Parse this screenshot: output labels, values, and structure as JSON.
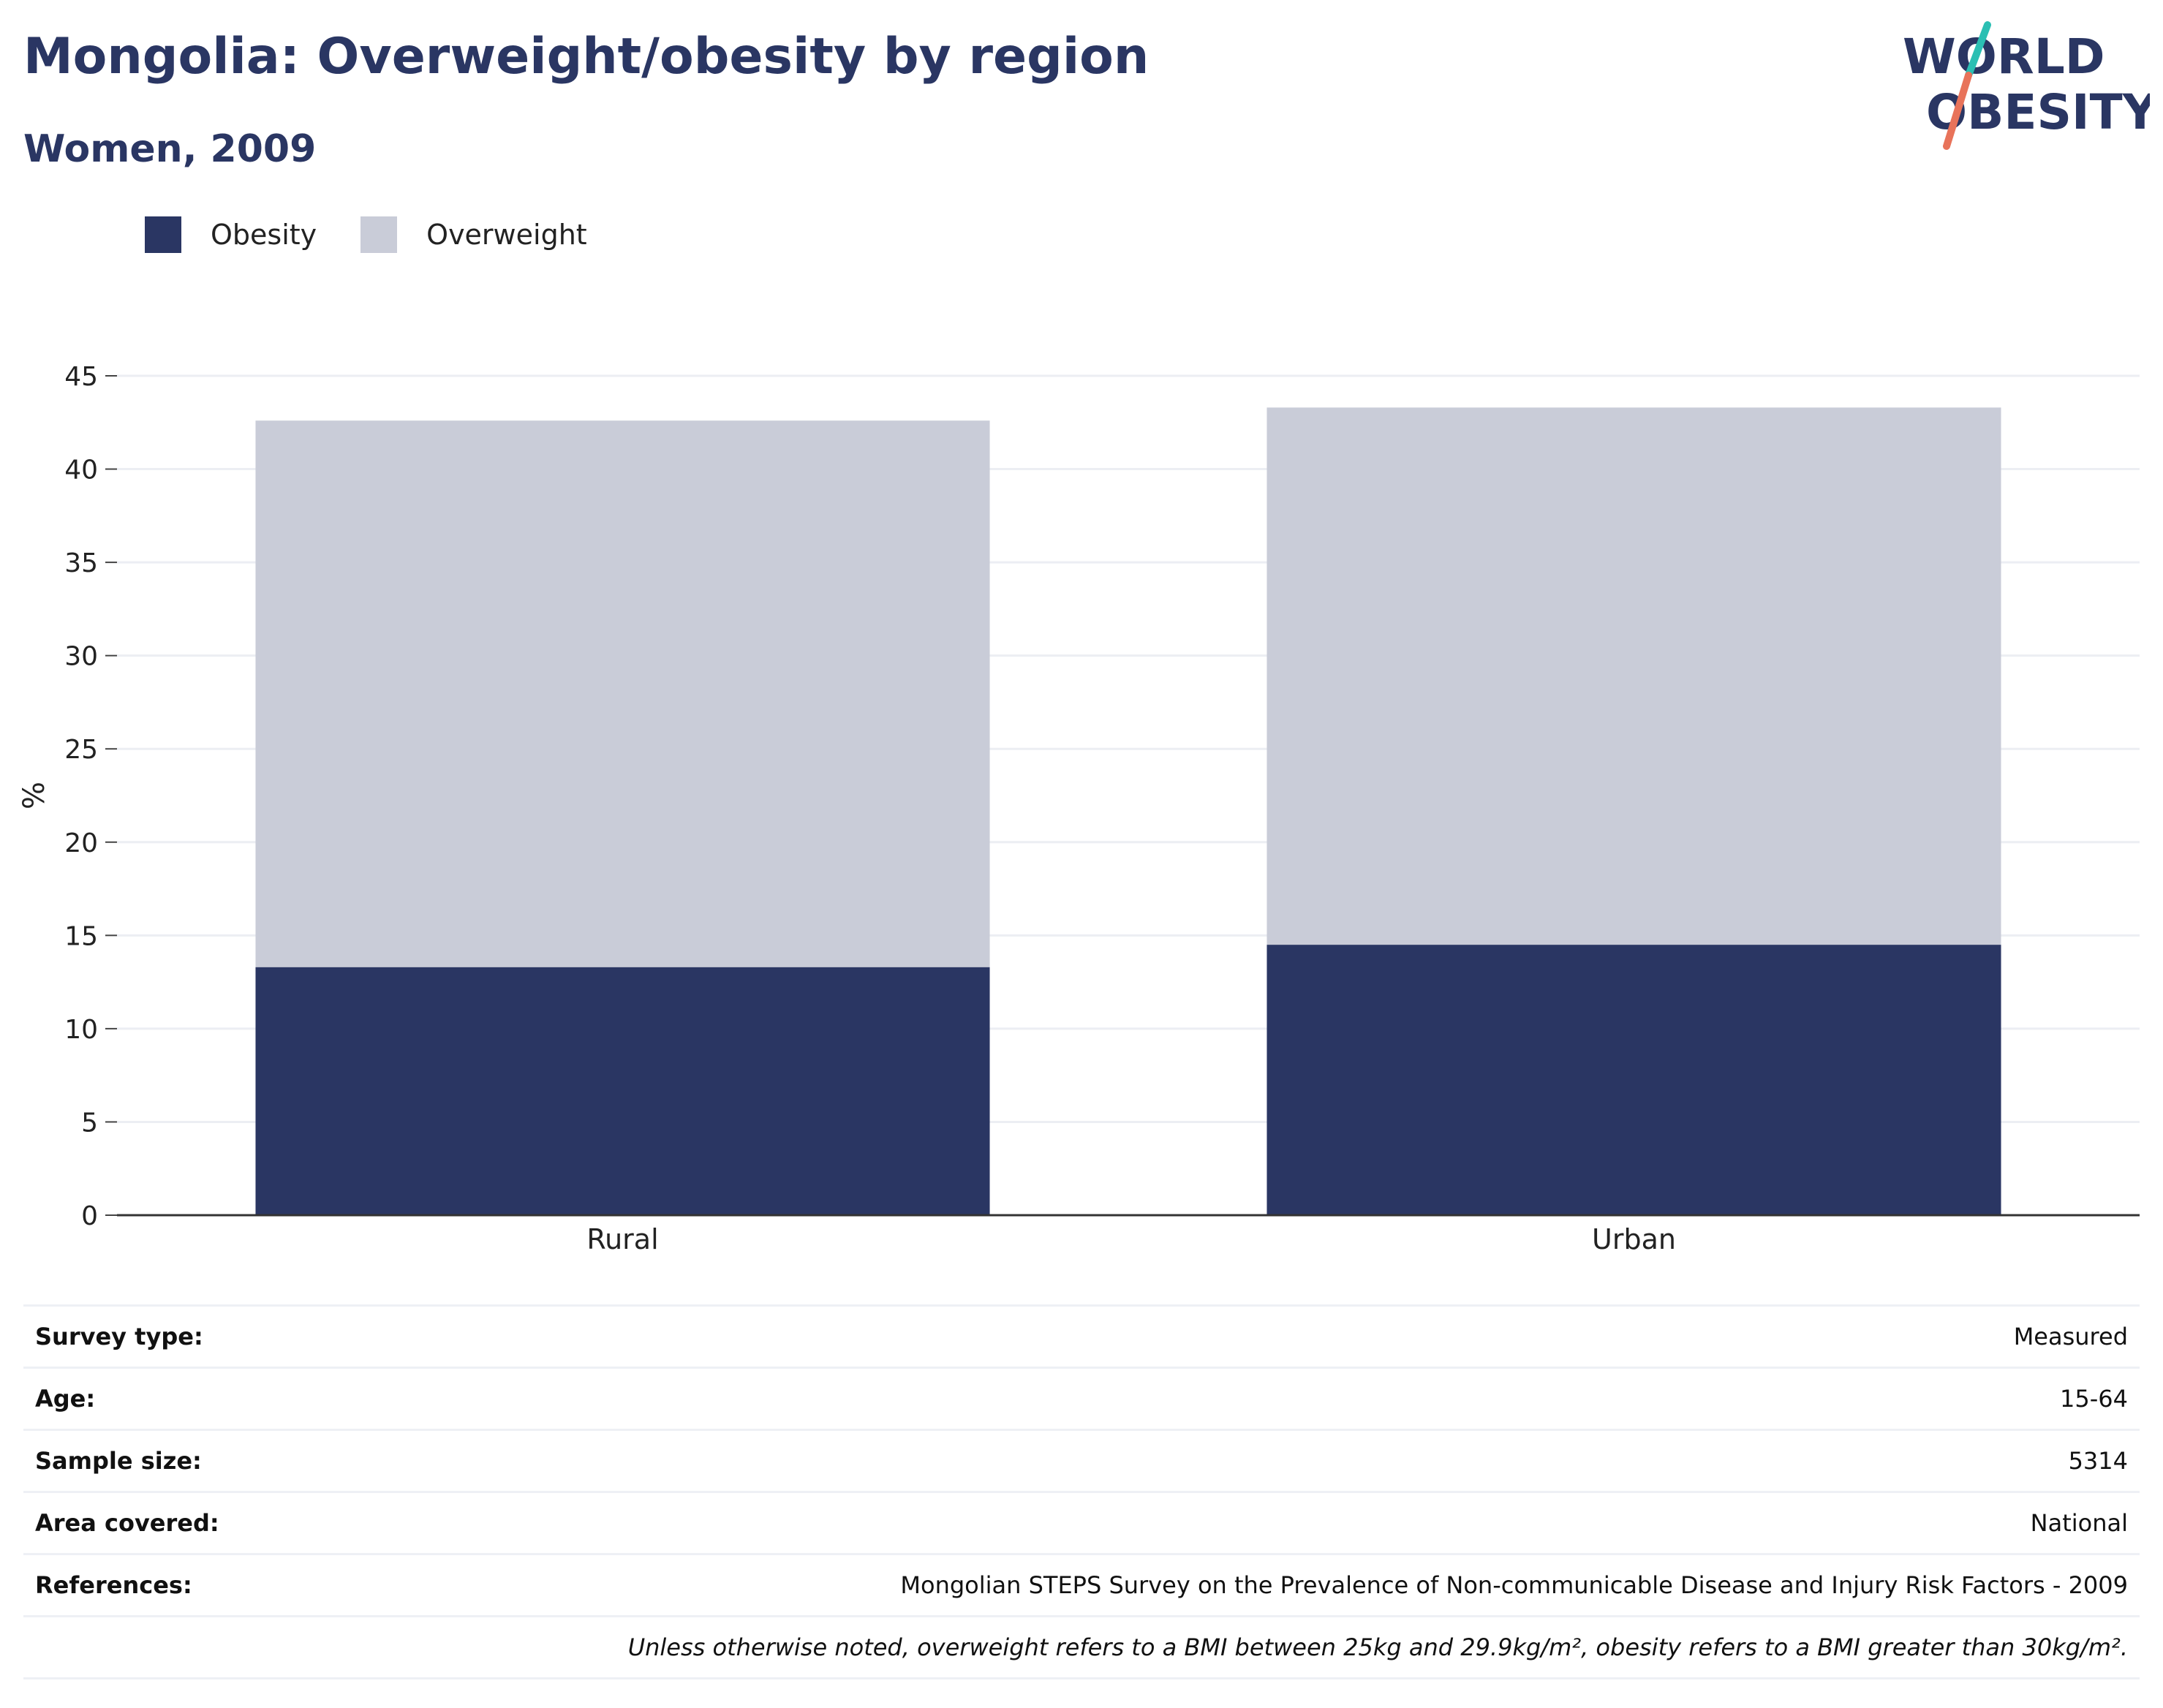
{
  "title": "Mongolia: Overweight/obesity by region",
  "subtitle": "Women, 2009",
  "logo": {
    "line1": "WORLD",
    "line2": "OBESITY"
  },
  "colors": {
    "obesity": "#2a3663",
    "overweight": "#c9ccd8",
    "text": "#2a3663",
    "logo_teal": "#2bbfb3",
    "logo_coral": "#e8735a"
  },
  "legend": [
    {
      "label": "Obesity",
      "color": "#2a3663"
    },
    {
      "label": "Overweight",
      "color": "#c9ccd8"
    }
  ],
  "chart_data": {
    "type": "bar",
    "stacked": true,
    "categories": [
      "Rural",
      "Urban"
    ],
    "series": [
      {
        "name": "Obesity",
        "values": [
          13.3,
          14.5
        ],
        "color": "#2a3663"
      },
      {
        "name": "Overweight",
        "values": [
          29.3,
          28.8
        ],
        "color": "#c9ccd8"
      }
    ],
    "ylabel": "%",
    "xlabel": "",
    "ylim": [
      0,
      45
    ],
    "yticks": [
      0,
      5,
      10,
      15,
      20,
      25,
      30,
      35,
      40,
      45
    ],
    "grid": true,
    "legend_position": "top-left"
  },
  "info": [
    {
      "label": "Survey type:",
      "value": "Measured"
    },
    {
      "label": "Age:",
      "value": "15-64"
    },
    {
      "label": "Sample size:",
      "value": "5314"
    },
    {
      "label": "Area covered:",
      "value": "National"
    },
    {
      "label": "References:",
      "value": "Mongolian STEPS Survey on the Prevalence of Non-communicable Disease and Injury Risk Factors - 2009"
    }
  ],
  "footnote": "Unless otherwise noted, overweight refers to a BMI between 25kg and 29.9kg/m², obesity refers to a BMI greater than 30kg/m²."
}
